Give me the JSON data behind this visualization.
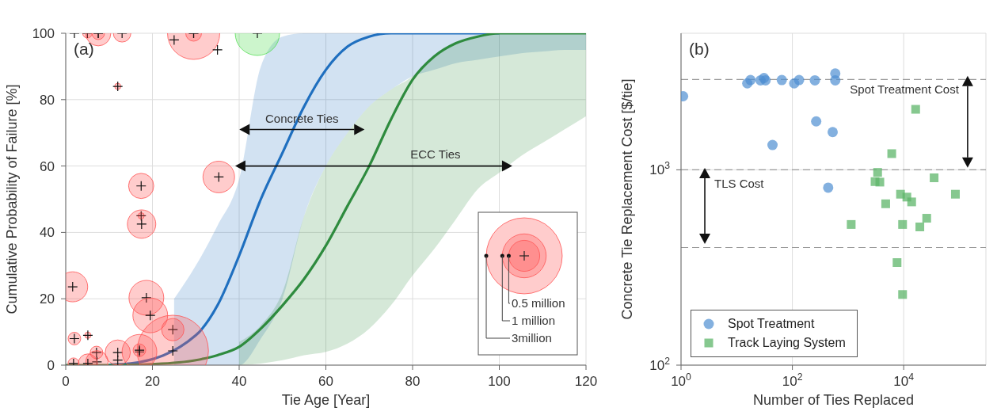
{
  "chart_data": [
    {
      "type": "line",
      "title": "(a)",
      "xlabel": "Tie Age [Year]",
      "ylabel": "Cumulative Probability of Failure [%]",
      "xlim": [
        0,
        120
      ],
      "xticks": [
        0,
        20,
        40,
        60,
        80,
        100,
        120
      ],
      "ylim": [
        0,
        100
      ],
      "yticks": [
        0,
        20,
        40,
        60,
        80,
        100
      ],
      "grid": true,
      "size_legend": [
        {
          "value": 0.5,
          "label": "0.5 million"
        },
        {
          "value": 1,
          "label": "1 million"
        },
        {
          "value": 3,
          "label": "3million"
        }
      ],
      "annotations": [
        "Concrete Ties",
        "ECC Ties"
      ],
      "series": [
        {
          "type": "bubble",
          "color": "#ff5555",
          "x": [
            5,
            7.5,
            7.5,
            13,
            29.5,
            29.5,
            12,
            17.4,
            35.3,
            17.4,
            17.5,
            1.6,
            18.6,
            19.5,
            24.7,
            24.7,
            2,
            5.1,
            7.1,
            7.2,
            12,
            17,
            17,
            1.8,
            5.1
          ],
          "values": [
            100,
            100,
            100,
            100,
            100,
            100,
            84,
            54,
            56.7,
            45,
            42.5,
            23.6,
            20.3,
            15,
            10.7,
            4.3,
            8,
            9,
            3.8,
            1,
            3.8,
            4,
            4.5,
            0.5,
            0.5
          ],
          "sizes": [
            0.047,
            0.083,
            0.33,
            0.16,
            1.42,
            0.13,
            0.02,
            0.33,
            0.52,
            0.02,
            0.42,
            0.47,
            0.63,
            0.63,
            0.26,
            2.64,
            0.083,
            0.02,
            0.083,
            0.26,
            0.33,
            0.63,
            0.083,
            0.064,
            0.19
          ]
        },
        {
          "type": "bubble",
          "color": "#55dd55",
          "x": [
            44.2
          ],
          "values": [
            100
          ],
          "sizes": [
            1.02
          ]
        },
        {
          "type": "scatter",
          "color": "#111111",
          "marker": "cross",
          "x": [
            2,
            25,
            35,
            12
          ],
          "values": [
            100,
            98,
            95,
            1.5
          ]
        },
        {
          "color": "#1f6fbf",
          "x": [
            10,
            15,
            20,
            25,
            30,
            35,
            40,
            45,
            50,
            55,
            60,
            65,
            70,
            75,
            80,
            85,
            90,
            95,
            100,
            105,
            110,
            115,
            120
          ],
          "values": [
            0.1,
            0.5,
            null,
            null,
            9,
            18,
            33,
            50,
            64,
            78,
            89,
            96,
            99,
            100,
            100,
            100,
            100,
            100,
            100,
            null,
            null,
            null,
            null
          ],
          "lower": [
            null,
            null,
            null,
            0,
            0,
            0,
            0,
            8,
            20,
            45,
            60,
            70,
            78,
            83,
            87,
            89,
            91,
            92,
            93,
            94,
            94.5,
            95,
            95
          ],
          "upper": [
            null,
            null,
            null,
            20,
            30,
            42,
            56,
            90,
            99,
            100,
            100,
            100,
            100,
            100,
            100,
            100,
            100,
            100,
            100,
            100,
            100,
            100,
            100
          ]
        },
        {
          "color": "#2e8b3e",
          "x": [
            0,
            5,
            10,
            15,
            20,
            25,
            30,
            35,
            40,
            45,
            50,
            55,
            60,
            65,
            70,
            75,
            80,
            85,
            90,
            95,
            100,
            105,
            110,
            115,
            120
          ],
          "values": [
            0,
            0,
            0,
            0.1,
            0.3,
            null,
            1.5,
            3,
            5.5,
            11,
            18,
            26,
            36,
            48,
            60,
            74,
            86,
            93,
            97,
            99,
            100,
            100,
            100,
            100,
            100
          ],
          "lower": [
            null,
            null,
            null,
            null,
            null,
            null,
            null,
            null,
            0,
            0.5,
            1.5,
            3,
            4,
            6.5,
            11,
            18,
            27,
            35,
            44,
            53,
            58,
            63,
            67,
            71,
            75
          ],
          "upper": [
            null,
            null,
            null,
            null,
            null,
            null,
            null,
            null,
            7,
            12,
            22,
            45,
            60,
            70,
            78,
            83,
            87,
            93,
            97,
            99,
            100,
            100,
            100,
            100,
            100
          ]
        }
      ]
    },
    {
      "type": "scatter",
      "title": "(b)",
      "xlabel": "Number of Ties Replaced",
      "ylabel": "Concrete Tie Replacement Cost [$/tie]",
      "log": "xy",
      "xlim": [
        1,
        300000
      ],
      "xticks": [
        {
          "value": 1,
          "label": "10$^{0}$"
        },
        {
          "value": 100,
          "label": "10$^{2}$"
        },
        {
          "value": 10000,
          "label": "10$^{4}$"
        }
      ],
      "ylim": [
        100,
        5000
      ],
      "yticks": [
        {
          "value": 100,
          "label": "10$^{2}$"
        },
        {
          "value": 1000,
          "label": "10$^{3}$"
        }
      ],
      "grid": true,
      "legend": "bottom left",
      "ref_lines": [
        {
          "axis": "y",
          "value": 2900,
          "color": "#999999",
          "line_style": "dashed"
        },
        {
          "axis": "y",
          "value": 1000,
          "color": "#999999",
          "line_style": "dashed"
        },
        {
          "axis": "y",
          "value": 400,
          "color": "#999999",
          "line_style": "dashed"
        }
      ],
      "annotations": [
        "Spot Treatment Cost",
        "TLS Cost"
      ],
      "series": [
        {
          "name": "Spot Treatment",
          "color": "#4f8fd1",
          "marker": "circle",
          "x": [
            1.09,
            15.5,
            17.7,
            26.8,
            30.9,
            33,
            64.6,
            108,
            132,
            254,
            590,
            590,
            268,
            530,
            44,
            440
          ],
          "values": [
            2380,
            2770,
            2880,
            2870,
            2950,
            2870,
            2880,
            2770,
            2880,
            2870,
            3110,
            2870,
            1770,
            1560,
            1340,
            810
          ]
        },
        {
          "name": "Track Laying System",
          "color": "#5db56a",
          "marker": "square",
          "x": [
            6100,
            3400,
            3060,
            3730,
            35200,
            8770,
            11400,
            13900,
            4750,
            84900,
            25900,
            1140,
            9550,
            19500,
            7600,
            9550,
            16400
          ],
          "values": [
            1210,
            970,
            870,
            865,
            910,
            750,
            725,
            685,
            670,
            750,
            565,
            525,
            525,
            510,
            335,
            230,
            2040
          ]
        }
      ]
    }
  ]
}
